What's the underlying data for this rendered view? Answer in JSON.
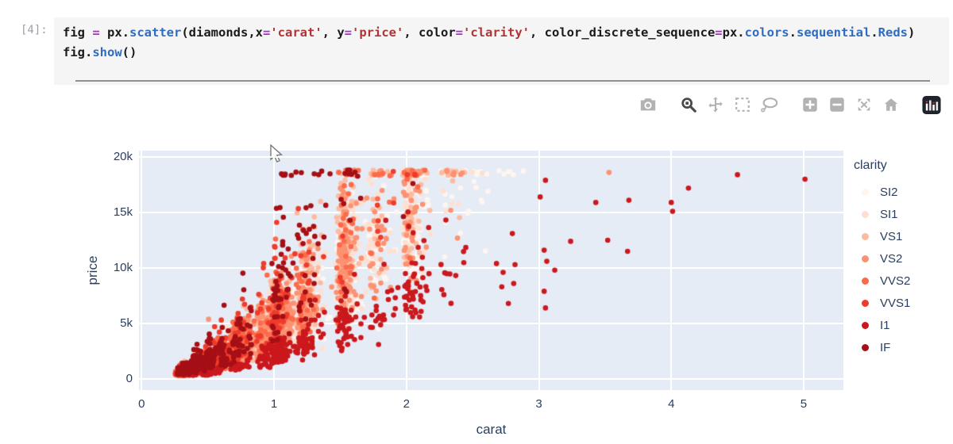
{
  "notebook": {
    "prompt": "[4]:",
    "code_lines": [
      [
        {
          "t": "fig ",
          "c": "plain"
        },
        {
          "t": "=",
          "c": "op"
        },
        {
          "t": " px.",
          "c": "plain"
        },
        {
          "t": "scatter",
          "c": "fn"
        },
        {
          "t": "(diamonds,x",
          "c": "plain"
        },
        {
          "t": "=",
          "c": "op"
        },
        {
          "t": "'carat'",
          "c": "str"
        },
        {
          "t": ", y",
          "c": "plain"
        },
        {
          "t": "=",
          "c": "op"
        },
        {
          "t": "'price'",
          "c": "str"
        },
        {
          "t": ", color",
          "c": "plain"
        },
        {
          "t": "=",
          "c": "op"
        },
        {
          "t": "'clarity'",
          "c": "str"
        },
        {
          "t": ", color_discrete_sequence",
          "c": "plain"
        },
        {
          "t": "=",
          "c": "op"
        },
        {
          "t": "px.",
          "c": "plain"
        },
        {
          "t": "colors",
          "c": "fn"
        },
        {
          "t": ".",
          "c": "plain"
        },
        {
          "t": "sequential",
          "c": "fn"
        },
        {
          "t": ".",
          "c": "plain"
        },
        {
          "t": "Reds",
          "c": "fn"
        },
        {
          "t": ")",
          "c": "plain"
        }
      ],
      [
        {
          "t": "fig.",
          "c": "plain"
        },
        {
          "t": "show",
          "c": "fn"
        },
        {
          "t": "()",
          "c": "plain"
        }
      ]
    ]
  },
  "modebar": {
    "active": "zoom",
    "icons": [
      "camera",
      "zoom",
      "pan",
      "box-select",
      "lasso-select",
      "zoom-in",
      "zoom-out",
      "autoscale",
      "reset-axes",
      "plotly-logo"
    ],
    "groups_start": [
      "zoom",
      "zoom-in",
      "plotly-logo"
    ]
  },
  "chart_data": {
    "type": "scatter",
    "title": "",
    "xlabel": "carat",
    "ylabel": "price",
    "legend_title": "clarity",
    "legend_position": "right",
    "grid": true,
    "plot_bg": "#e5ecf6",
    "xlim": [
      -0.02,
      5.3
    ],
    "ylim": [
      -1000,
      20570
    ],
    "x_ticks": [
      {
        "v": 0,
        "label": "0"
      },
      {
        "v": 1,
        "label": "1"
      },
      {
        "v": 2,
        "label": "2"
      },
      {
        "v": 3,
        "label": "3"
      },
      {
        "v": 4,
        "label": "4"
      },
      {
        "v": 5,
        "label": "5"
      }
    ],
    "y_ticks": [
      {
        "v": 0,
        "label": "0"
      },
      {
        "v": 5000,
        "label": "5k"
      },
      {
        "v": 10000,
        "label": "10k"
      },
      {
        "v": 15000,
        "label": "15k"
      },
      {
        "v": 20000,
        "label": "20k"
      }
    ],
    "price_floor": 330,
    "price_cap": 18823,
    "base_coef": 4200,
    "base_exp": 1.85,
    "marker_radius": 3.3,
    "series": [
      {
        "name": "SI2",
        "color": "#fff5f0",
        "n": 1300,
        "pf": 0.92,
        "sigma": 0.31,
        "seed": 11,
        "clusters": [
          [
            0.31,
            16,
            0.045
          ],
          [
            0.41,
            10,
            0.04
          ],
          [
            0.51,
            12,
            0.045
          ],
          [
            0.61,
            6,
            0.05
          ],
          [
            0.71,
            12,
            0.055
          ],
          [
            0.91,
            7,
            0.06
          ],
          [
            1.01,
            14,
            0.06
          ],
          [
            1.22,
            6,
            0.07
          ],
          [
            1.51,
            9,
            0.06
          ],
          [
            1.72,
            3,
            0.07
          ],
          [
            2.01,
            7,
            0.06
          ],
          [
            2.27,
            2,
            0.09
          ],
          [
            2.52,
            1.2,
            0.1
          ],
          [
            2.72,
            0.5,
            0.08
          ]
        ],
        "outliers": []
      },
      {
        "name": "SI1",
        "color": "#fee0d2",
        "n": 1700,
        "pf": 1.0,
        "sigma": 0.3,
        "seed": 22,
        "clusters": [
          [
            0.3,
            18,
            0.04
          ],
          [
            0.4,
            11,
            0.04
          ],
          [
            0.5,
            12,
            0.045
          ],
          [
            0.6,
            6,
            0.05
          ],
          [
            0.7,
            13,
            0.05
          ],
          [
            0.9,
            8,
            0.055
          ],
          [
            1.01,
            14,
            0.06
          ],
          [
            1.21,
            6,
            0.06
          ],
          [
            1.51,
            8,
            0.055
          ],
          [
            1.71,
            2.5,
            0.06
          ],
          [
            2.01,
            5,
            0.05
          ],
          [
            2.3,
            1,
            0.08
          ]
        ],
        "outliers": []
      },
      {
        "name": "VS1",
        "color": "#fcbba1",
        "n": 1100,
        "pf": 1.15,
        "sigma": 0.3,
        "seed": 33,
        "clusters": [
          [
            0.3,
            20,
            0.04
          ],
          [
            0.4,
            12,
            0.04
          ],
          [
            0.5,
            11,
            0.045
          ],
          [
            0.7,
            12,
            0.05
          ],
          [
            0.9,
            5,
            0.05
          ],
          [
            1.01,
            11,
            0.055
          ],
          [
            1.21,
            5,
            0.06
          ],
          [
            1.51,
            6,
            0.05
          ],
          [
            1.75,
            2,
            0.06
          ],
          [
            2.01,
            3,
            0.05
          ],
          [
            2.3,
            0.7,
            0.08
          ]
        ],
        "outliers": []
      },
      {
        "name": "VS2",
        "color": "#fc9272",
        "n": 1550,
        "pf": 1.08,
        "sigma": 0.3,
        "seed": 44,
        "clusters": [
          [
            0.3,
            19,
            0.04
          ],
          [
            0.4,
            12,
            0.04
          ],
          [
            0.5,
            11,
            0.045
          ],
          [
            0.7,
            13,
            0.05
          ],
          [
            0.9,
            6,
            0.05
          ],
          [
            1.01,
            12,
            0.055
          ],
          [
            1.21,
            5,
            0.06
          ],
          [
            1.51,
            6,
            0.05
          ],
          [
            1.75,
            2,
            0.06
          ],
          [
            2.01,
            4,
            0.05
          ],
          [
            2.3,
            0.8,
            0.08
          ]
        ],
        "outliers": [
          [
            3.53,
            18600
          ]
        ]
      },
      {
        "name": "VVS2",
        "color": "#fb6a4a",
        "n": 700,
        "pf": 1.25,
        "sigma": 0.31,
        "seed": 55,
        "clusters": [
          [
            0.3,
            24,
            0.035
          ],
          [
            0.4,
            13,
            0.04
          ],
          [
            0.5,
            11,
            0.04
          ],
          [
            0.6,
            5,
            0.045
          ],
          [
            0.7,
            10,
            0.05
          ],
          [
            0.9,
            3,
            0.05
          ],
          [
            1.01,
            7,
            0.05
          ],
          [
            1.21,
            3,
            0.055
          ],
          [
            1.51,
            3,
            0.05
          ],
          [
            1.75,
            1,
            0.05
          ],
          [
            2.01,
            1,
            0.05
          ]
        ],
        "outliers": []
      },
      {
        "name": "VVS1",
        "color": "#ef3b2c",
        "n": 520,
        "pf": 1.32,
        "sigma": 0.31,
        "seed": 66,
        "clusters": [
          [
            0.3,
            26,
            0.035
          ],
          [
            0.4,
            13,
            0.04
          ],
          [
            0.5,
            10,
            0.04
          ],
          [
            0.6,
            4,
            0.045
          ],
          [
            0.7,
            8,
            0.05
          ],
          [
            0.9,
            2.5,
            0.05
          ],
          [
            1.01,
            5,
            0.05
          ],
          [
            1.21,
            2,
            0.055
          ],
          [
            1.51,
            1.5,
            0.05
          ],
          [
            1.78,
            0.8,
            0.05
          ],
          [
            2.01,
            0.5,
            0.04
          ]
        ],
        "outliers": []
      },
      {
        "name": "I1",
        "color": "#cb181d",
        "n": 430,
        "pf": 0.52,
        "sigma": 0.28,
        "seed": 77,
        "clusters": [
          [
            0.35,
            4,
            0.05
          ],
          [
            0.5,
            5,
            0.05
          ],
          [
            0.7,
            6,
            0.055
          ],
          [
            0.9,
            5,
            0.06
          ],
          [
            1.01,
            10,
            0.06
          ],
          [
            1.21,
            5,
            0.07
          ],
          [
            1.51,
            6,
            0.06
          ],
          [
            1.76,
            3,
            0.07
          ],
          [
            2.01,
            5,
            0.06
          ],
          [
            2.3,
            1.5,
            0.09
          ]
        ],
        "outliers": [
          [
            2.68,
            10400
          ],
          [
            2.72,
            8300
          ],
          [
            2.73,
            9600
          ],
          [
            2.77,
            6800
          ],
          [
            2.8,
            13100
          ],
          [
            2.81,
            8600
          ],
          [
            2.82,
            10300
          ],
          [
            3.01,
            16400
          ],
          [
            3.04,
            11600
          ],
          [
            3.04,
            7900
          ],
          [
            3.05,
            17900
          ],
          [
            3.05,
            6400
          ],
          [
            3.06,
            10600
          ],
          [
            3.12,
            9800
          ],
          [
            3.24,
            12400
          ],
          [
            3.43,
            15900
          ],
          [
            3.52,
            12500
          ],
          [
            3.67,
            11500
          ],
          [
            3.68,
            16100
          ],
          [
            4.0,
            15900
          ],
          [
            4.01,
            15100
          ],
          [
            4.13,
            17200
          ],
          [
            4.5,
            18400
          ],
          [
            5.01,
            18000
          ]
        ]
      },
      {
        "name": "IF",
        "color": "#a50f15",
        "n": 440,
        "pf": 1.5,
        "sigma": 0.34,
        "seed": 88,
        "clusters": [
          [
            0.31,
            22,
            0.035
          ],
          [
            0.41,
            12,
            0.04
          ],
          [
            0.51,
            10,
            0.04
          ],
          [
            0.61,
            5,
            0.045
          ],
          [
            0.71,
            6,
            0.05
          ],
          [
            1.01,
            5,
            0.05
          ],
          [
            1.05,
            4,
            0.07,
            1.85
          ],
          [
            1.21,
            2.5,
            0.06
          ],
          [
            1.3,
            2,
            0.08,
            1.8
          ],
          [
            1.51,
            1,
            0.05
          ],
          [
            1.55,
            1.5,
            0.05,
            1.55
          ],
          [
            2.01,
            0.5,
            0.05
          ]
        ],
        "outliers": []
      }
    ]
  },
  "colors": {
    "plot_bg": "#e5ecf6",
    "grid": "#ffffff",
    "text": "#2a3f5f",
    "cell_bg": "#f5f5f5",
    "prompt": "#9aa0a6",
    "icon": "#b2b2b2",
    "icon_active": "#4a4a4a",
    "logo_bg": "#1f242c"
  }
}
